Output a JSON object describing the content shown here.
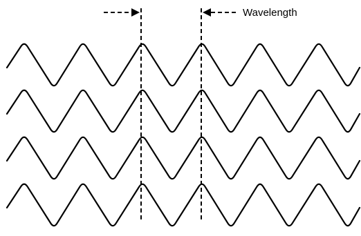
{
  "labels": {
    "wavelength": "Wavelength"
  },
  "diagram": {
    "wave_count": 4,
    "cycles_per_wave": 5.5,
    "colors": {
      "stroke": "#000000",
      "background": "#ffffff"
    }
  }
}
